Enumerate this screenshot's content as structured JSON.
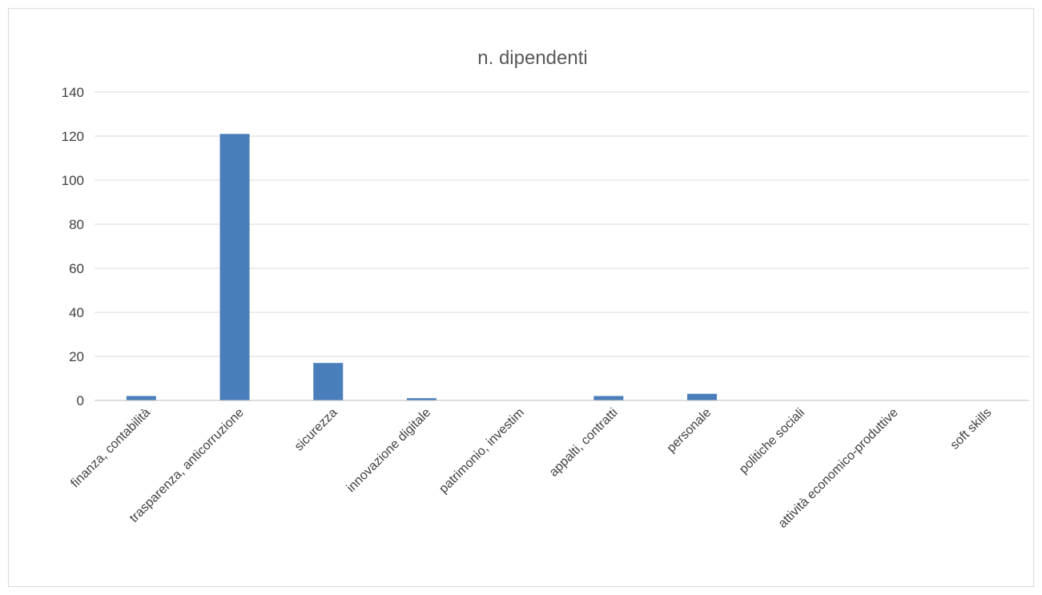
{
  "chart_data": {
    "type": "bar",
    "title": "n. dipendenti",
    "xlabel": "",
    "ylabel": "",
    "categories": [
      "finanza, contabilità",
      "trasparenza, anticorruzione",
      "sicurezza",
      "innovazione digitale",
      "patrimonio, investim",
      "appalti, contratti",
      "personale",
      "politiche sociali",
      "attività economico-produttive",
      "soft skills"
    ],
    "series": [
      {
        "values": [
          2,
          121,
          17,
          1,
          0,
          2,
          3,
          0,
          0,
          0
        ]
      }
    ],
    "ylim": [
      0,
      140
    ],
    "yticks": [
      0,
      20,
      40,
      60,
      80,
      100,
      120,
      140
    ],
    "grid": true,
    "legend": "none",
    "colors": {
      "bar": "#4a7ebb",
      "grid": "#d9d9d9",
      "axis": "#bfbfbf",
      "text": "#404040",
      "title": "#595959"
    }
  }
}
